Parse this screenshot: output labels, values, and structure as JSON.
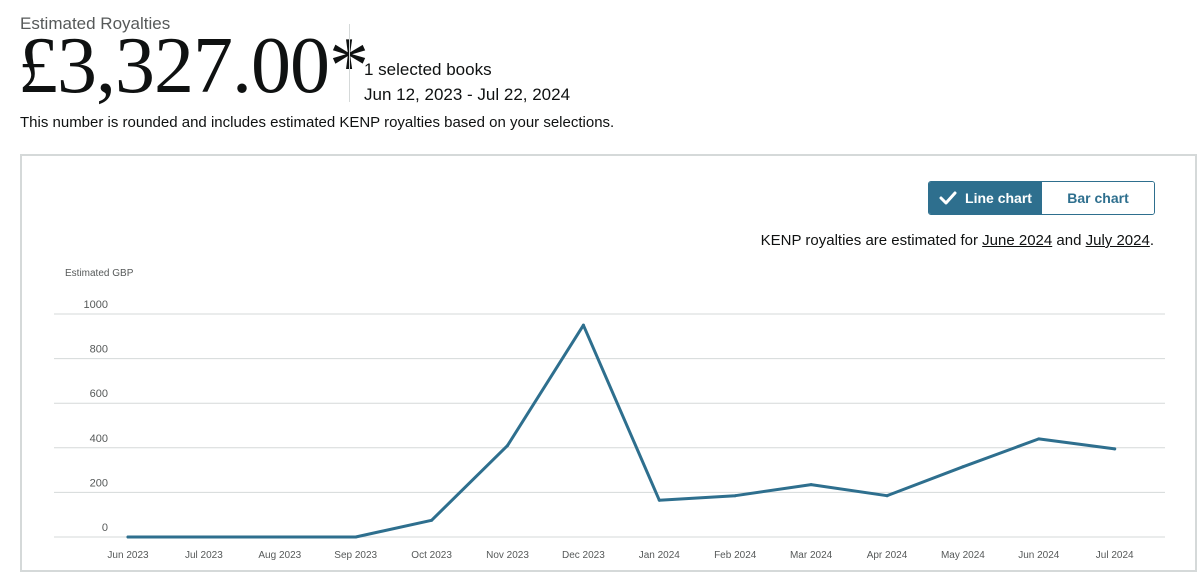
{
  "summary": {
    "label": "Estimated Royalties",
    "amount": "£3,327.00*",
    "selected_books": "1 selected books",
    "date_range": "Jun 12, 2023 - Jul 22, 2024",
    "note": "This number is rounded and includes estimated KENP royalties based on your selections."
  },
  "toggle": {
    "line_label": "Line chart",
    "bar_label": "Bar chart",
    "selected": "line"
  },
  "kenp_note": {
    "prefix": "KENP royalties are estimated for ",
    "link1": "June 2024",
    "middle": " and ",
    "link2": "July 2024",
    "suffix": "."
  },
  "colors": {
    "accent": "#2e6f8e",
    "grid": "#d5d9d9"
  },
  "icons": {
    "toggle_check": "check-icon"
  },
  "chart_data": {
    "type": "line",
    "ylabel": "Estimated GBP",
    "xlabel": "",
    "ylim": [
      0,
      1000
    ],
    "yticks": [
      0,
      200,
      400,
      600,
      800,
      1000
    ],
    "grid": true,
    "categories": [
      "Jun 2023",
      "Jul 2023",
      "Aug 2023",
      "Sep 2023",
      "Oct 2023",
      "Nov 2023",
      "Dec 2023",
      "Jan 2024",
      "Feb 2024",
      "Mar 2024",
      "Apr 2024",
      "May 2024",
      "Jun 2024",
      "Jul 2024"
    ],
    "series": [
      {
        "values": [
          0,
          0,
          0,
          0,
          75,
          410,
          950,
          165,
          185,
          235,
          185,
          315,
          440,
          395
        ]
      }
    ]
  }
}
